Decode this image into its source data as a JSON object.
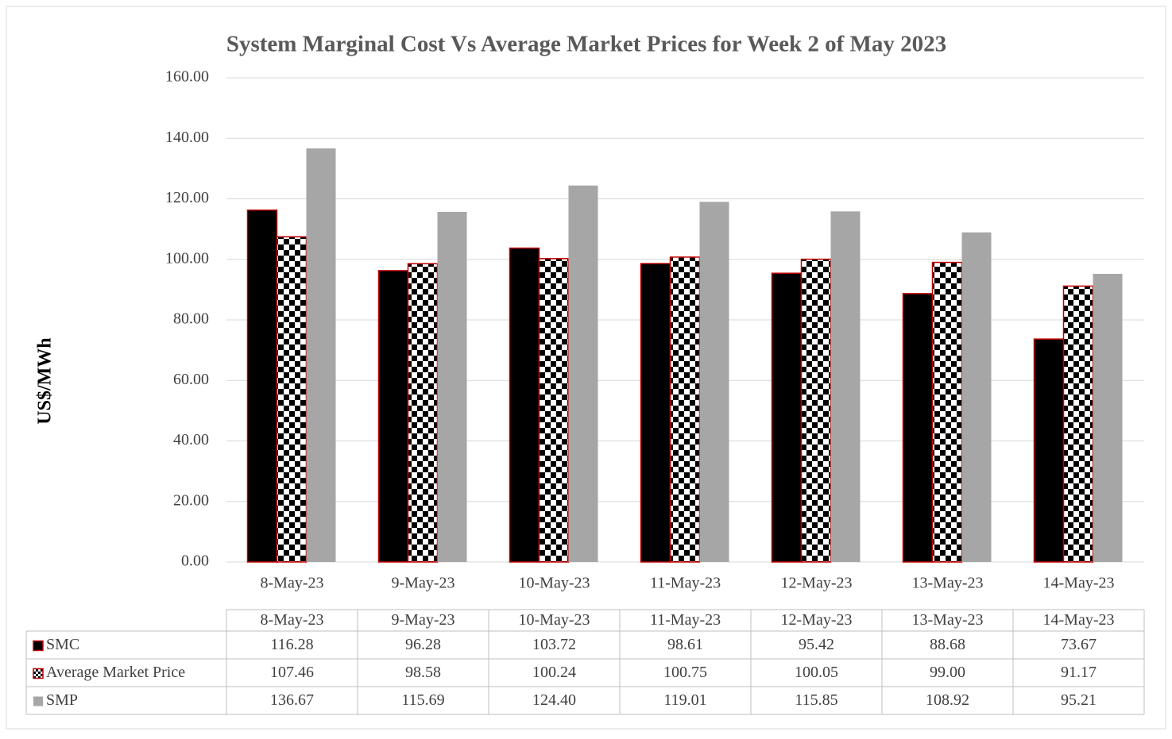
{
  "chart_data": {
    "type": "bar",
    "title": "System Marginal Cost Vs Average Market Prices for Week 2 of  May 2023",
    "ylabel": "US$/MWh",
    "categories": [
      "8-May-23",
      "9-May-23",
      "10-May-23",
      "11-May-23",
      "12-May-23",
      "13-May-23",
      "14-May-23"
    ],
    "series": [
      {
        "name": "SMC",
        "color": "#000000",
        "values": [
          116.28,
          96.28,
          103.72,
          98.61,
          95.42,
          88.68,
          73.67
        ],
        "value_labels": [
          "116.28",
          "96.28",
          "103.72",
          "98.61",
          "95.42",
          "88.68",
          "73.67"
        ]
      },
      {
        "name": "Average Market Price",
        "color": "checker",
        "values": [
          107.46,
          98.58,
          100.24,
          100.75,
          100.05,
          99.0,
          91.17
        ],
        "value_labels": [
          "107.46",
          "98.58",
          "100.24",
          "100.75",
          "100.05",
          "99.00",
          "91.17"
        ]
      },
      {
        "name": "SMP",
        "color": "#a6a6a6",
        "values": [
          136.67,
          115.69,
          124.4,
          119.01,
          115.85,
          108.92,
          95.21
        ],
        "value_labels": [
          "136.67",
          "115.69",
          "124.40",
          "119.01",
          "115.85",
          "108.92",
          "95.21"
        ]
      }
    ],
    "ylim": [
      0,
      160
    ],
    "yticks": [
      {
        "value": 0,
        "label": "0.00"
      },
      {
        "value": 20,
        "label": "20.00"
      },
      {
        "value": 40,
        "label": "40.00"
      },
      {
        "value": 60,
        "label": "60.00"
      },
      {
        "value": 80,
        "label": "80.00"
      },
      {
        "value": 100,
        "label": "100.00"
      },
      {
        "value": 120,
        "label": "120.00"
      },
      {
        "value": 140,
        "label": "140.00"
      },
      {
        "value": 160,
        "label": "160.00"
      }
    ],
    "grid": true
  }
}
